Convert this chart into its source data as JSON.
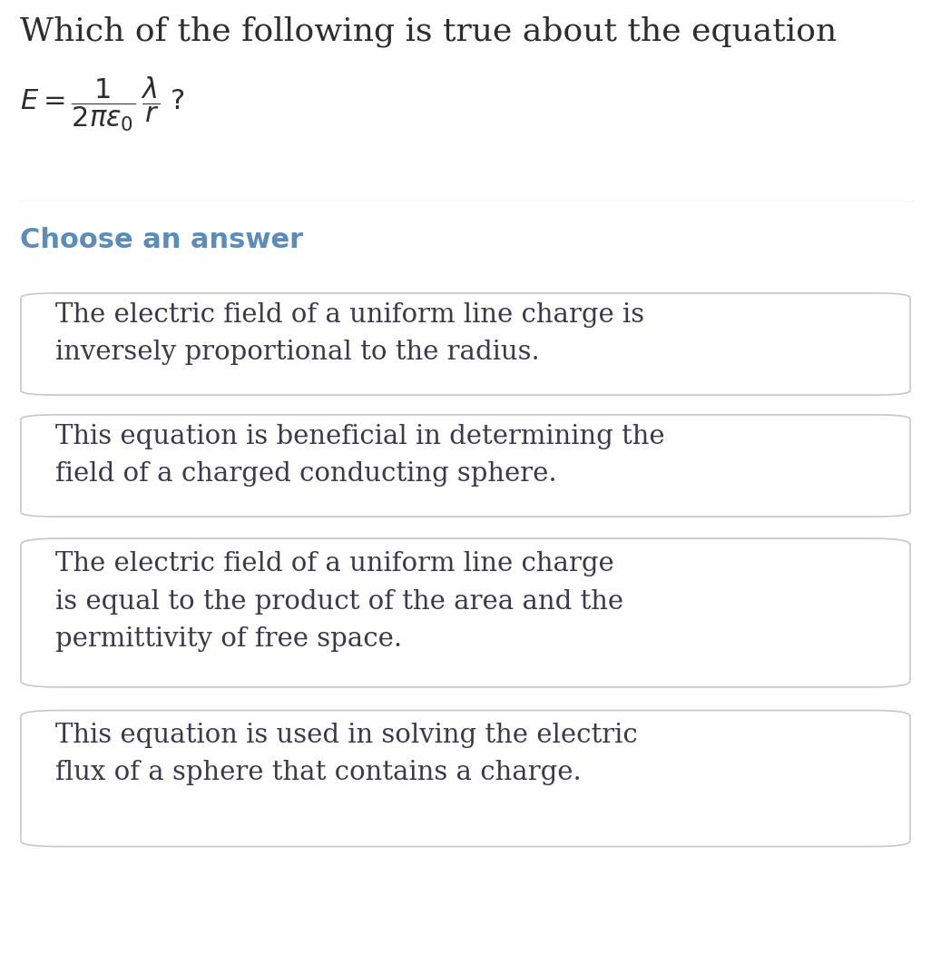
{
  "background_color": "#ffffff",
  "title_text": "Which of the following is true about the equation",
  "title_color": "#2d2d2d",
  "title_fontsize": 26,
  "equation_color": "#2d2d2d",
  "equation_fontsize": 22,
  "divider_color": "#cccccc",
  "choose_answer_text": "Choose an answer",
  "choose_answer_color": "#5b8db8",
  "choose_answer_fontsize": 22,
  "answer_text_color": "#3a3a4a",
  "answer_fontsize": 21,
  "box_edge_color": "#c8c8cc",
  "box_face_color": "#ffffff",
  "answers": [
    "The electric field of a uniform line charge is\ninversely proportional to the radius.",
    "This equation is beneficial in determining the\nfield of a charged conducting sphere.",
    "The electric field of a uniform line charge\nis equal to the product of the area and the\npermittivity of free space.",
    "This equation is used in solving the electric\nflux of a sphere that contains a charge."
  ],
  "fig_width": 10.26,
  "fig_height": 10.74,
  "dpi": 100
}
